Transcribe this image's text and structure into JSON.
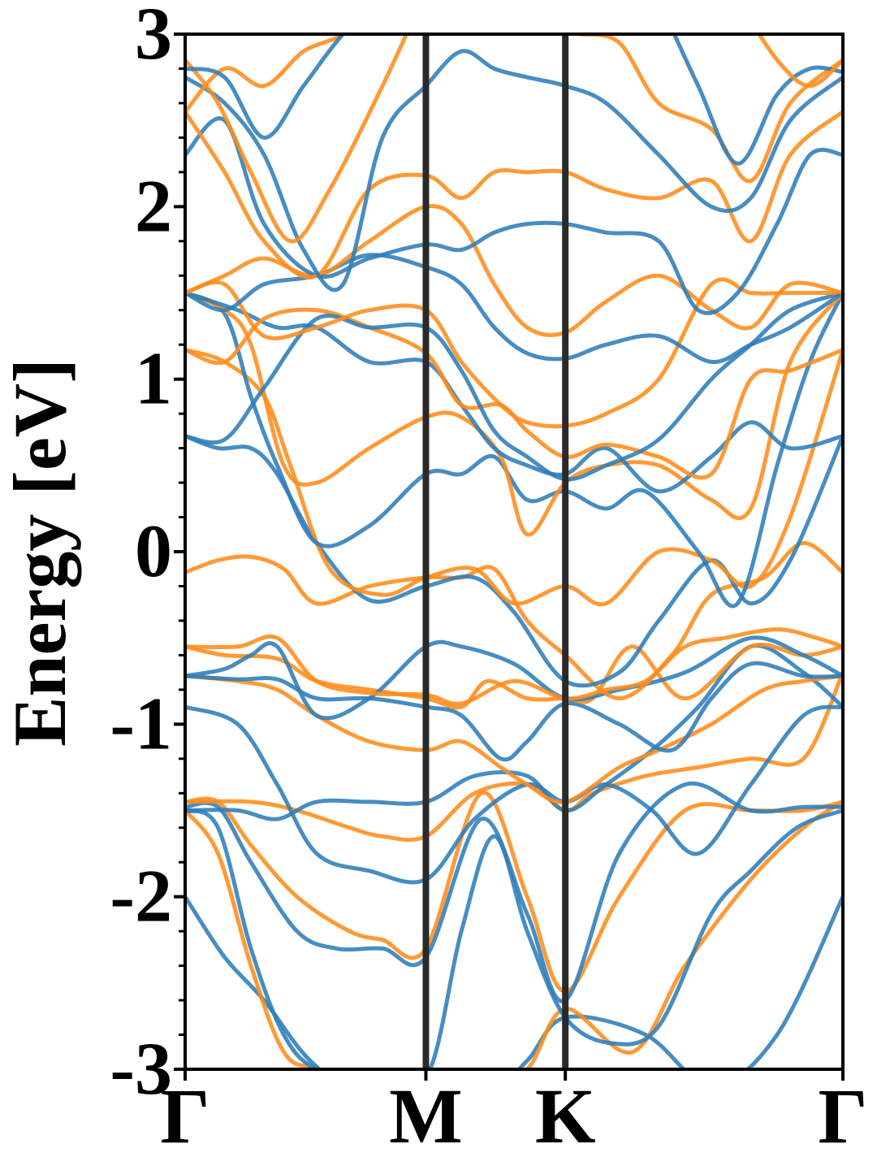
{
  "chart_data": {
    "type": "line",
    "ylabel": "Energy [eV]",
    "ylim": [
      -3,
      3
    ],
    "yticks": [
      "3",
      "2",
      "1",
      "0",
      "-1",
      "-2",
      "-3"
    ],
    "ytick_values": [
      3,
      2,
      1,
      0,
      -1,
      -2,
      -3
    ],
    "yminor_step": 0.2,
    "kpath_labels": [
      "Γ",
      "M",
      "K",
      "Γ"
    ],
    "kpath_positions": [
      0,
      0.366,
      0.578,
      1
    ],
    "grid": false,
    "legend": "none",
    "series_colors": {
      "blue": "#2e7db9",
      "orange": "#ff8c1a"
    },
    "series": [
      {
        "color": "blue",
        "x": [
          0,
          0.06,
          0.12,
          0.19,
          0.28,
          0.366,
          0.45,
          0.52,
          0.578,
          0.7,
          0.8,
          0.9,
          1
        ],
        "y": [
          -2.0,
          -2.35,
          -2.6,
          -2.95,
          -3.2,
          -3.3,
          -3.2,
          -2.95,
          -2.7,
          -2.8,
          -3.1,
          -2.8,
          -2.0
        ]
      },
      {
        "color": "orange",
        "x": [
          0,
          0.05,
          0.1,
          0.15,
          0.2,
          0.28,
          0.366,
          0.45,
          0.52,
          0.578,
          0.68,
          0.76,
          0.86,
          0.94,
          1
        ],
        "y": [
          -1.5,
          -1.75,
          -2.4,
          -2.9,
          -3.0,
          -3.1,
          -3.2,
          -3.1,
          -3.0,
          -2.65,
          -2.9,
          -2.4,
          -1.9,
          -1.6,
          -1.45
        ]
      },
      {
        "color": "blue",
        "x": [
          0,
          0.05,
          0.1,
          0.15,
          0.2,
          0.28,
          0.366,
          0.42,
          0.47,
          0.52,
          0.578,
          0.65,
          0.72,
          0.8,
          0.86,
          0.93,
          1
        ],
        "y": [
          -1.5,
          -1.6,
          -2.3,
          -2.8,
          -3.0,
          -3.05,
          -3.05,
          -2.2,
          -1.65,
          -2.2,
          -2.7,
          -2.85,
          -2.75,
          -2.1,
          -1.85,
          -1.6,
          -1.5
        ]
      },
      {
        "color": "orange",
        "x": [
          0,
          0.05,
          0.1,
          0.17,
          0.25,
          0.3,
          0.366,
          0.45,
          0.52,
          0.578,
          0.66,
          0.76,
          0.86,
          0.94,
          1
        ],
        "y": [
          -1.45,
          -1.45,
          -1.7,
          -2.0,
          -2.2,
          -2.25,
          -2.3,
          -1.4,
          -2.0,
          -2.55,
          -2.0,
          -1.5,
          -1.5,
          -1.5,
          -1.45
        ]
      },
      {
        "color": "blue",
        "x": [
          0,
          0.05,
          0.1,
          0.17,
          0.23,
          0.3,
          0.366,
          0.45,
          0.52,
          0.578,
          0.66,
          0.76,
          0.86,
          0.94,
          1
        ],
        "y": [
          -1.48,
          -1.48,
          -1.8,
          -2.2,
          -2.3,
          -2.3,
          -2.35,
          -1.55,
          -2.1,
          -2.6,
          -1.75,
          -1.35,
          -1.5,
          -1.48,
          -1.48
        ]
      },
      {
        "color": "orange",
        "x": [
          0,
          0.1,
          0.17,
          0.25,
          0.3,
          0.366,
          0.44,
          0.52,
          0.578,
          0.62,
          0.7,
          0.78,
          0.86,
          0.94,
          1
        ],
        "y": [
          -1.45,
          -1.45,
          -1.5,
          -1.6,
          -1.65,
          -1.65,
          -1.4,
          -1.35,
          -1.5,
          -1.4,
          -1.3,
          -1.25,
          -1.2,
          -1.2,
          -0.7
        ]
      },
      {
        "color": "blue",
        "x": [
          0,
          0.08,
          0.14,
          0.2,
          0.28,
          0.366,
          0.44,
          0.52,
          0.578,
          0.64,
          0.71,
          0.78,
          0.86,
          0.94,
          1
        ],
        "y": [
          -0.9,
          -1.0,
          -1.35,
          -1.75,
          -1.85,
          -1.9,
          -1.55,
          -1.35,
          -1.45,
          -1.35,
          -1.5,
          -1.75,
          -1.35,
          -0.95,
          -0.9
        ]
      },
      {
        "color": "blue",
        "x": [
          0,
          0.08,
          0.14,
          0.2,
          0.28,
          0.366,
          0.44,
          0.52,
          0.578,
          0.64,
          0.71,
          0.78,
          0.86,
          0.94,
          1
        ],
        "y": [
          -1.5,
          -1.5,
          -1.55,
          -1.45,
          -1.45,
          -1.45,
          -1.3,
          -1.3,
          -1.5,
          -1.35,
          -1.15,
          -0.9,
          -0.55,
          -0.7,
          -0.9
        ]
      },
      {
        "color": "orange",
        "x": [
          0,
          0.08,
          0.14,
          0.2,
          0.28,
          0.366,
          0.42,
          0.48,
          0.52,
          0.578,
          0.66,
          0.72,
          0.8,
          0.88,
          0.94,
          1
        ],
        "y": [
          -0.72,
          -0.75,
          -0.8,
          -0.95,
          -1.1,
          -1.15,
          -1.1,
          -1.25,
          -1.35,
          -1.45,
          -1.25,
          -1.15,
          -1.0,
          -0.8,
          -0.75,
          -0.72
        ]
      },
      {
        "color": "blue",
        "x": [
          0,
          0.08,
          0.14,
          0.2,
          0.28,
          0.366,
          0.42,
          0.48,
          0.52,
          0.578,
          0.66,
          0.74,
          0.8,
          0.86,
          0.94,
          1
        ],
        "y": [
          -0.72,
          -0.74,
          -0.74,
          -0.85,
          -0.85,
          -0.9,
          -0.95,
          -1.2,
          -1.1,
          -0.88,
          -1.0,
          -1.15,
          -0.85,
          -0.65,
          -0.72,
          -0.72
        ]
      },
      {
        "color": "orange",
        "x": [
          0,
          0.06,
          0.14,
          0.2,
          0.28,
          0.366,
          0.42,
          0.46,
          0.52,
          0.578,
          0.62,
          0.68,
          0.76,
          0.86,
          0.94,
          1
        ],
        "y": [
          -0.55,
          -0.6,
          -0.62,
          -0.75,
          -0.8,
          -0.85,
          -0.9,
          -0.75,
          -0.85,
          -0.85,
          -0.85,
          -0.55,
          -0.85,
          -0.55,
          -0.6,
          -0.55
        ]
      },
      {
        "color": "blue",
        "x": [
          0,
          0.06,
          0.1,
          0.14,
          0.2,
          0.28,
          0.366,
          0.42,
          0.5,
          0.578,
          0.66,
          0.76,
          0.86,
          0.94,
          1
        ],
        "y": [
          -0.72,
          -0.68,
          -0.6,
          -0.55,
          -0.95,
          -0.85,
          -0.55,
          -0.55,
          -0.65,
          -0.85,
          -0.8,
          -0.7,
          -0.5,
          -0.6,
          -0.72
        ]
      },
      {
        "color": "orange",
        "x": [
          0,
          0.08,
          0.14,
          0.2,
          0.28,
          0.366,
          0.42,
          0.5,
          0.578,
          0.64,
          0.7,
          0.76,
          0.82,
          0.9,
          0.96,
          1
        ],
        "y": [
          -0.55,
          -0.55,
          -0.5,
          -0.75,
          -0.82,
          -0.83,
          -0.88,
          -0.75,
          -0.85,
          -0.8,
          -0.75,
          -0.55,
          -0.5,
          -0.45,
          -0.5,
          -0.55
        ]
      },
      {
        "color": "orange",
        "x": [
          0,
          0.05,
          0.1,
          0.15,
          0.2,
          0.28,
          0.366,
          0.42,
          0.47,
          0.52,
          0.578,
          0.66,
          0.74,
          0.8,
          0.88,
          0.94,
          1
        ],
        "y": [
          -0.12,
          -0.05,
          -0.03,
          -0.1,
          -0.3,
          -0.2,
          -0.15,
          -0.15,
          -0.1,
          -0.4,
          -0.6,
          -0.85,
          -0.6,
          -0.25,
          -0.15,
          0.05,
          -0.12
        ]
      },
      {
        "color": "blue",
        "x": [
          0,
          0.05,
          0.1,
          0.14,
          0.2,
          0.28,
          0.366,
          0.44,
          0.5,
          0.578,
          0.66,
          0.72,
          0.8,
          0.86,
          0.92,
          1
        ],
        "y": [
          0.67,
          0.6,
          0.6,
          0.45,
          0.05,
          -0.28,
          -0.2,
          -0.15,
          -0.35,
          -0.75,
          -0.7,
          -0.4,
          -0.05,
          -0.3,
          -0.05,
          0.67
        ]
      },
      {
        "color": "orange",
        "x": [
          0,
          0.06,
          0.12,
          0.16,
          0.22,
          0.3,
          0.366,
          0.44,
          0.5,
          0.578,
          0.64,
          0.72,
          0.8,
          0.86,
          0.92,
          1
        ],
        "y": [
          1.17,
          1.1,
          0.9,
          0.5,
          -0.1,
          -0.25,
          -0.15,
          -0.1,
          -0.3,
          -0.2,
          -0.3,
          0.0,
          -0.05,
          -0.2,
          0.2,
          1.17
        ]
      },
      {
        "color": "blue",
        "x": [
          0,
          0.06,
          0.1,
          0.14,
          0.2,
          0.28,
          0.366,
          0.42,
          0.47,
          0.52,
          0.578,
          0.64,
          0.7,
          0.78,
          0.84,
          0.9,
          0.95,
          1
        ],
        "y": [
          1.5,
          1.38,
          0.9,
          0.5,
          0.05,
          0.15,
          0.45,
          0.45,
          0.55,
          0.3,
          0.35,
          0.25,
          0.35,
          0.0,
          -0.3,
          0.5,
          1.1,
          1.5
        ]
      },
      {
        "color": "orange",
        "x": [
          0,
          0.06,
          0.1,
          0.15,
          0.2,
          0.28,
          0.366,
          0.42,
          0.48,
          0.52,
          0.578,
          0.64,
          0.72,
          0.8,
          0.86,
          0.92,
          1
        ],
        "y": [
          1.5,
          1.4,
          1.2,
          0.5,
          0.4,
          0.6,
          0.78,
          0.78,
          0.55,
          0.1,
          0.4,
          0.5,
          0.5,
          0.3,
          0.25,
          1.1,
          1.5
        ]
      },
      {
        "color": "blue",
        "x": [
          0,
          0.08,
          0.14,
          0.2,
          0.28,
          0.366,
          0.42,
          0.47,
          0.52,
          0.578,
          0.64,
          0.72,
          0.8,
          0.86,
          0.92,
          1
        ],
        "y": [
          1.5,
          1.4,
          1.3,
          1.3,
          1.1,
          1.1,
          0.85,
          0.6,
          0.5,
          0.45,
          0.6,
          0.35,
          0.55,
          0.75,
          0.6,
          0.67
        ]
      },
      {
        "color": "orange",
        "x": [
          0,
          0.06,
          0.12,
          0.2,
          0.28,
          0.366,
          0.42,
          0.48,
          0.52,
          0.578,
          0.64,
          0.72,
          0.8,
          0.86,
          0.92,
          1
        ],
        "y": [
          1.17,
          1.1,
          1.35,
          1.4,
          1.3,
          1.15,
          0.85,
          0.85,
          0.7,
          0.55,
          0.62,
          0.55,
          0.45,
          1.0,
          1.05,
          1.17
        ]
      },
      {
        "color": "blue",
        "x": [
          0,
          0.06,
          0.12,
          0.2,
          0.28,
          0.366,
          0.42,
          0.47,
          0.52,
          0.578,
          0.64,
          0.72,
          0.8,
          0.86,
          0.92,
          1
        ],
        "y": [
          0.67,
          0.65,
          0.95,
          1.35,
          1.3,
          1.3,
          1.05,
          0.7,
          0.55,
          0.42,
          0.5,
          0.65,
          1.0,
          1.2,
          1.4,
          1.5
        ]
      },
      {
        "color": "orange",
        "x": [
          0,
          0.06,
          0.12,
          0.2,
          0.28,
          0.366,
          0.42,
          0.48,
          0.52,
          0.578,
          0.64,
          0.72,
          0.8,
          0.86,
          0.92,
          1
        ],
        "y": [
          1.5,
          1.55,
          1.25,
          1.3,
          1.4,
          1.4,
          1.1,
          0.85,
          0.75,
          0.73,
          0.8,
          1.0,
          1.55,
          1.5,
          1.5,
          1.5
        ]
      },
      {
        "color": "blue",
        "x": [
          0,
          0.06,
          0.12,
          0.2,
          0.28,
          0.366,
          0.42,
          0.47,
          0.52,
          0.578,
          0.64,
          0.72,
          0.8,
          0.86,
          0.92,
          1
        ],
        "y": [
          1.5,
          1.4,
          1.55,
          1.6,
          1.72,
          1.65,
          1.55,
          1.3,
          1.15,
          1.12,
          1.2,
          1.25,
          1.1,
          1.2,
          1.3,
          1.5
        ]
      },
      {
        "color": "orange",
        "x": [
          0,
          0.06,
          0.12,
          0.2,
          0.28,
          0.366,
          0.42,
          0.47,
          0.52,
          0.578,
          0.64,
          0.72,
          0.8,
          0.86,
          0.92,
          1
        ],
        "y": [
          1.5,
          1.6,
          1.7,
          1.6,
          1.8,
          2.0,
          1.9,
          1.55,
          1.3,
          1.27,
          1.45,
          1.6,
          1.4,
          1.3,
          1.55,
          1.5
        ]
      },
      {
        "color": "blue",
        "x": [
          0,
          0.06,
          0.12,
          0.2,
          0.28,
          0.366,
          0.42,
          0.47,
          0.52,
          0.578,
          0.64,
          0.72,
          0.78,
          0.84,
          0.9,
          0.95,
          1
        ],
        "y": [
          2.3,
          2.5,
          1.9,
          1.6,
          1.7,
          1.78,
          1.75,
          1.85,
          1.9,
          1.9,
          1.85,
          1.8,
          1.4,
          1.5,
          1.9,
          2.3,
          2.3
        ]
      },
      {
        "color": "orange",
        "x": [
          0,
          0.06,
          0.12,
          0.2,
          0.28,
          0.366,
          0.42,
          0.47,
          0.52,
          0.578,
          0.64,
          0.72,
          0.8,
          0.86,
          0.92,
          1
        ],
        "y": [
          2.55,
          2.2,
          1.8,
          1.6,
          2.1,
          2.18,
          2.05,
          2.2,
          2.2,
          2.2,
          2.1,
          2.05,
          2.15,
          1.8,
          2.3,
          2.55
        ]
      },
      {
        "color": "blue",
        "x": [
          0,
          0.06,
          0.12,
          0.18,
          0.24,
          0.3,
          0.366,
          0.42,
          0.47,
          0.52,
          0.578,
          0.64,
          0.72,
          0.8,
          0.86,
          0.92,
          1
        ],
        "y": [
          2.75,
          2.6,
          2.3,
          1.75,
          1.55,
          2.4,
          2.7,
          2.9,
          2.8,
          2.75,
          2.7,
          2.6,
          2.3,
          2.0,
          2.05,
          2.5,
          2.75
        ]
      },
      {
        "color": "orange",
        "x": [
          0,
          0.05,
          0.1,
          0.16,
          0.22,
          0.3,
          0.36
        ],
        "y": [
          2.85,
          2.6,
          2.2,
          1.8,
          2.1,
          2.7,
          3.2
        ]
      },
      {
        "color": "orange",
        "x": [
          0,
          0.06,
          0.12,
          0.18,
          0.24,
          0.3
        ],
        "y": [
          2.55,
          2.8,
          2.7,
          2.9,
          3.0,
          3.2
        ]
      },
      {
        "color": "blue",
        "x": [
          0,
          0.06,
          0.12,
          0.18,
          0.24,
          0.3
        ],
        "y": [
          2.8,
          2.75,
          2.4,
          2.7,
          3.0,
          3.2
        ]
      },
      {
        "color": "orange",
        "x": [
          0.6,
          0.66,
          0.72,
          0.8,
          0.86,
          0.92,
          1
        ],
        "y": [
          3.0,
          2.95,
          2.6,
          2.45,
          2.15,
          2.6,
          2.85
        ]
      },
      {
        "color": "blue",
        "x": [
          0.72,
          0.78,
          0.84,
          0.9,
          0.95,
          1
        ],
        "y": [
          3.2,
          2.7,
          2.25,
          2.65,
          2.8,
          2.78
        ]
      },
      {
        "color": "orange",
        "x": [
          0.84,
          0.9,
          0.95,
          1
        ],
        "y": [
          3.2,
          2.85,
          2.7,
          2.85
        ]
      }
    ]
  }
}
